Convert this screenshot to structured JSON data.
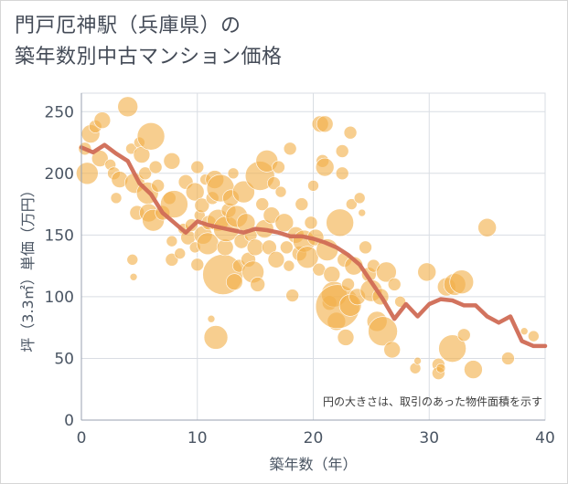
{
  "title": {
    "line1": "門戸厄神駅（兵庫県）の",
    "line2": "築年数別中古マンション価格"
  },
  "note": "円の大きさは、取引のあった物件面積を示す",
  "colors": {
    "bubble": "#f2b04a",
    "line": "#d06b55",
    "grid": "#d9dde3",
    "axis": "#98a2b0"
  },
  "chart_data": {
    "type": "scatter",
    "title": "門戸厄神駅（兵庫県）の築年数別中古マンション価格",
    "xlabel": "築年数（年）",
    "ylabel": "坪（3.3㎡）単価（万円）",
    "xlim": [
      0,
      40
    ],
    "ylim": [
      0,
      265
    ],
    "xticks": [
      "0",
      "10",
      "20",
      "30",
      "40"
    ],
    "yticks": [
      "0",
      "50",
      "100",
      "150",
      "200",
      "250"
    ],
    "grid": true,
    "series": [
      {
        "type": "line",
        "x": [
          0,
          1,
          2,
          3,
          4,
          5,
          6,
          7,
          8,
          9,
          10,
          11,
          12,
          13,
          14,
          15,
          16,
          17,
          18,
          19,
          20,
          21,
          22,
          23,
          24,
          25,
          26,
          27,
          28,
          29,
          30,
          31,
          32,
          33,
          34,
          35,
          36,
          37,
          38,
          39,
          40
        ],
        "y": [
          221,
          217,
          223,
          216,
          210,
          192,
          183,
          168,
          160,
          152,
          161,
          158,
          156,
          154,
          152,
          155,
          154,
          152,
          149,
          149,
          147,
          144,
          140,
          134,
          126,
          112,
          98,
          82,
          94,
          84,
          94,
          98,
          97,
          93,
          93,
          84,
          79,
          84,
          64,
          60,
          60
        ]
      },
      {
        "type": "bubble",
        "points": [
          {
            "x": 0.3,
            "y": 220,
            "s": 7
          },
          {
            "x": 0.5,
            "y": 200,
            "s": 12
          },
          {
            "x": 0.8,
            "y": 232,
            "s": 10
          },
          {
            "x": 1.2,
            "y": 238,
            "s": 7
          },
          {
            "x": 1.6,
            "y": 212,
            "s": 9
          },
          {
            "x": 1.8,
            "y": 243,
            "s": 9
          },
          {
            "x": 2.5,
            "y": 207,
            "s": 6
          },
          {
            "x": 2.8,
            "y": 200,
            "s": 7
          },
          {
            "x": 3.0,
            "y": 180,
            "s": 6
          },
          {
            "x": 3.3,
            "y": 195,
            "s": 9
          },
          {
            "x": 4.0,
            "y": 254,
            "s": 11
          },
          {
            "x": 4.3,
            "y": 220,
            "s": 6
          },
          {
            "x": 4.6,
            "y": 192,
            "s": 11
          },
          {
            "x": 4.8,
            "y": 168,
            "s": 8
          },
          {
            "x": 5.0,
            "y": 225,
            "s": 6
          },
          {
            "x": 5.2,
            "y": 215,
            "s": 9
          },
          {
            "x": 5.5,
            "y": 200,
            "s": 7
          },
          {
            "x": 5.7,
            "y": 184,
            "s": 12
          },
          {
            "x": 5.8,
            "y": 168,
            "s": 10
          },
          {
            "x": 6.0,
            "y": 230,
            "s": 15
          },
          {
            "x": 6.2,
            "y": 162,
            "s": 12
          },
          {
            "x": 6.4,
            "y": 205,
            "s": 7
          },
          {
            "x": 6.6,
            "y": 190,
            "s": 7
          },
          {
            "x": 4.4,
            "y": 130,
            "s": 6
          },
          {
            "x": 4.5,
            "y": 116,
            "s": 4
          },
          {
            "x": 7.0,
            "y": 168,
            "s": 8
          },
          {
            "x": 7.6,
            "y": 180,
            "s": 7
          },
          {
            "x": 7.8,
            "y": 210,
            "s": 9
          },
          {
            "x": 8.0,
            "y": 175,
            "s": 15
          },
          {
            "x": 7.8,
            "y": 145,
            "s": 6
          },
          {
            "x": 7.8,
            "y": 130,
            "s": 7
          },
          {
            "x": 8.5,
            "y": 135,
            "s": 6
          },
          {
            "x": 8.8,
            "y": 155,
            "s": 6
          },
          {
            "x": 9.0,
            "y": 193,
            "s": 8
          },
          {
            "x": 9.2,
            "y": 148,
            "s": 8
          },
          {
            "x": 9.5,
            "y": 158,
            "s": 7
          },
          {
            "x": 9.8,
            "y": 140,
            "s": 6
          },
          {
            "x": 9.8,
            "y": 185,
            "s": 10
          },
          {
            "x": 10.0,
            "y": 205,
            "s": 7
          },
          {
            "x": 10.0,
            "y": 126,
            "s": 7
          },
          {
            "x": 10.2,
            "y": 166,
            "s": 6
          },
          {
            "x": 10.4,
            "y": 174,
            "s": 8
          },
          {
            "x": 10.5,
            "y": 150,
            "s": 10
          },
          {
            "x": 10.7,
            "y": 195,
            "s": 6
          },
          {
            "x": 10.9,
            "y": 143,
            "s": 12
          },
          {
            "x": 11.2,
            "y": 82,
            "s": 4
          },
          {
            "x": 11.0,
            "y": 160,
            "s": 8
          },
          {
            "x": 11.3,
            "y": 180,
            "s": 7
          },
          {
            "x": 11.5,
            "y": 195,
            "s": 10
          },
          {
            "x": 11.6,
            "y": 67,
            "s": 13
          },
          {
            "x": 11.8,
            "y": 162,
            "s": 12
          },
          {
            "x": 12.0,
            "y": 188,
            "s": 15
          },
          {
            "x": 12.2,
            "y": 118,
            "s": 22
          },
          {
            "x": 12.4,
            "y": 140,
            "s": 9
          },
          {
            "x": 12.5,
            "y": 155,
            "s": 14
          },
          {
            "x": 12.7,
            "y": 170,
            "s": 8
          },
          {
            "x": 12.9,
            "y": 180,
            "s": 9
          },
          {
            "x": 13.1,
            "y": 200,
            "s": 6
          },
          {
            "x": 13.2,
            "y": 112,
            "s": 9
          },
          {
            "x": 13.4,
            "y": 165,
            "s": 12
          },
          {
            "x": 13.6,
            "y": 125,
            "s": 7
          },
          {
            "x": 13.8,
            "y": 145,
            "s": 8
          },
          {
            "x": 14.0,
            "y": 185,
            "s": 12
          },
          {
            "x": 14.2,
            "y": 160,
            "s": 10
          },
          {
            "x": 14.4,
            "y": 130,
            "s": 8
          },
          {
            "x": 14.6,
            "y": 150,
            "s": 7
          },
          {
            "x": 14.8,
            "y": 120,
            "s": 12
          },
          {
            "x": 15.0,
            "y": 140,
            "s": 9
          },
          {
            "x": 15.2,
            "y": 110,
            "s": 8
          },
          {
            "x": 15.4,
            "y": 198,
            "s": 16
          },
          {
            "x": 15.6,
            "y": 175,
            "s": 7
          },
          {
            "x": 15.8,
            "y": 155,
            "s": 10
          },
          {
            "x": 16.0,
            "y": 210,
            "s": 12
          },
          {
            "x": 16.2,
            "y": 140,
            "s": 8
          },
          {
            "x": 16.4,
            "y": 166,
            "s": 9
          },
          {
            "x": 16.6,
            "y": 192,
            "s": 7
          },
          {
            "x": 16.8,
            "y": 130,
            "s": 9
          },
          {
            "x": 17.0,
            "y": 205,
            "s": 7
          },
          {
            "x": 17.2,
            "y": 185,
            "s": 6
          },
          {
            "x": 17.5,
            "y": 160,
            "s": 10
          },
          {
            "x": 17.7,
            "y": 140,
            "s": 7
          },
          {
            "x": 17.9,
            "y": 125,
            "s": 6
          },
          {
            "x": 18.2,
            "y": 101,
            "s": 7
          },
          {
            "x": 18.5,
            "y": 150,
            "s": 9
          },
          {
            "x": 18.8,
            "y": 135,
            "s": 8
          },
          {
            "x": 19.0,
            "y": 175,
            "s": 7
          },
          {
            "x": 19.2,
            "y": 145,
            "s": 12
          },
          {
            "x": 19.5,
            "y": 132,
            "s": 12
          },
          {
            "x": 19.8,
            "y": 160,
            "s": 7
          },
          {
            "x": 20.0,
            "y": 190,
            "s": 6
          },
          {
            "x": 20.2,
            "y": 148,
            "s": 9
          },
          {
            "x": 20.5,
            "y": 122,
            "s": 7
          },
          {
            "x": 20.6,
            "y": 240,
            "s": 9
          },
          {
            "x": 20.8,
            "y": 210,
            "s": 7
          },
          {
            "x": 21.0,
            "y": 205,
            "s": 10
          },
          {
            "x": 21.2,
            "y": 138,
            "s": 12
          },
          {
            "x": 21.4,
            "y": 95,
            "s": 8
          },
          {
            "x": 21.6,
            "y": 118,
            "s": 9
          },
          {
            "x": 21.8,
            "y": 102,
            "s": 14
          },
          {
            "x": 22.0,
            "y": 80,
            "s": 10
          },
          {
            "x": 22.1,
            "y": 92,
            "s": 24
          },
          {
            "x": 22.3,
            "y": 160,
            "s": 15
          },
          {
            "x": 22.5,
            "y": 200,
            "s": 7
          },
          {
            "x": 22.7,
            "y": 130,
            "s": 8
          },
          {
            "x": 22.8,
            "y": 67,
            "s": 9
          },
          {
            "x": 23.0,
            "y": 110,
            "s": 7
          },
          {
            "x": 23.2,
            "y": 93,
            "s": 12
          },
          {
            "x": 23.3,
            "y": 175,
            "s": 6
          },
          {
            "x": 23.5,
            "y": 125,
            "s": 10
          },
          {
            "x": 23.8,
            "y": 100,
            "s": 9
          },
          {
            "x": 24.0,
            "y": 180,
            "s": 6
          },
          {
            "x": 24.2,
            "y": 168,
            "s": 4
          },
          {
            "x": 24.5,
            "y": 140,
            "s": 7
          },
          {
            "x": 24.8,
            "y": 118,
            "s": 8
          },
          {
            "x": 25.0,
            "y": 105,
            "s": 12
          },
          {
            "x": 25.2,
            "y": 125,
            "s": 7
          },
          {
            "x": 25.5,
            "y": 80,
            "s": 11
          },
          {
            "x": 25.8,
            "y": 100,
            "s": 9
          },
          {
            "x": 26.0,
            "y": 72,
            "s": 16
          },
          {
            "x": 26.3,
            "y": 120,
            "s": 11
          },
          {
            "x": 26.8,
            "y": 57,
            "s": 9
          },
          {
            "x": 27.0,
            "y": 110,
            "s": 7
          },
          {
            "x": 27.5,
            "y": 96,
            "s": 6
          },
          {
            "x": 28.8,
            "y": 42,
            "s": 6
          },
          {
            "x": 29.0,
            "y": 48,
            "s": 4
          },
          {
            "x": 29.8,
            "y": 120,
            "s": 10
          },
          {
            "x": 30.8,
            "y": 45,
            "s": 7
          },
          {
            "x": 30.8,
            "y": 38,
            "s": 7
          },
          {
            "x": 31.0,
            "y": 42,
            "s": 5
          },
          {
            "x": 31.5,
            "y": 108,
            "s": 10
          },
          {
            "x": 32.0,
            "y": 58,
            "s": 15
          },
          {
            "x": 32.2,
            "y": 110,
            "s": 12
          },
          {
            "x": 32.8,
            "y": 112,
            "s": 13
          },
          {
            "x": 33.0,
            "y": 69,
            "s": 7
          },
          {
            "x": 33.8,
            "y": 41,
            "s": 10
          },
          {
            "x": 35.0,
            "y": 156,
            "s": 10
          },
          {
            "x": 36.8,
            "y": 50,
            "s": 7
          },
          {
            "x": 38.2,
            "y": 72,
            "s": 4
          },
          {
            "x": 39.0,
            "y": 68,
            "s": 6
          },
          {
            "x": 21.0,
            "y": 240,
            "s": 9
          },
          {
            "x": 22.5,
            "y": 218,
            "s": 7
          },
          {
            "x": 23.2,
            "y": 233,
            "s": 7
          },
          {
            "x": 18.0,
            "y": 220,
            "s": 7
          }
        ]
      }
    ]
  }
}
